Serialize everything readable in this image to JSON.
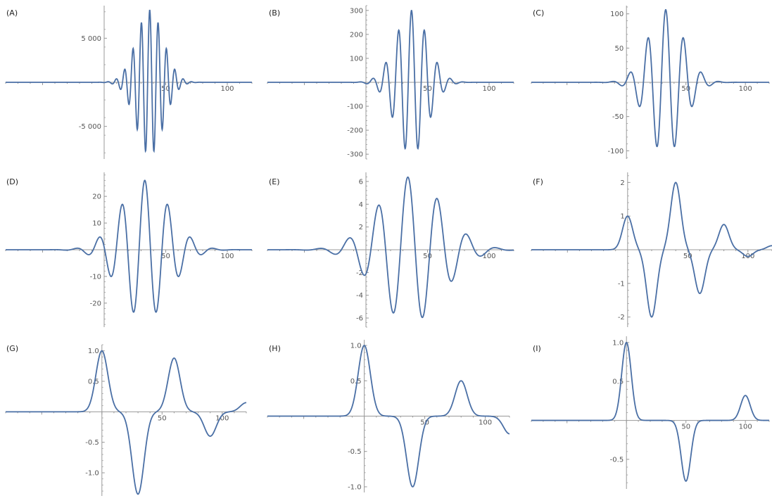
{
  "figure": {
    "curve_color": "#4a6fa5",
    "axis_color": "#999999",
    "text_color": "#555555"
  },
  "chart_data": [
    {
      "panel": "(A)",
      "type": "line",
      "xlim": [
        -80,
        120
      ],
      "ylim": [
        -8700,
        8700
      ],
      "xticks": [
        50,
        100
      ],
      "xtick_labels": [
        "50",
        "100"
      ],
      "yticks": [
        5000,
        -5000
      ],
      "ytick_labels": [
        "5 000",
        "-5 000"
      ],
      "model": {
        "baseline": 0,
        "components": [
          {
            "type": "wave",
            "amp": 8200,
            "center": 37,
            "sigma": 11,
            "period": 6.8,
            "phase": 0
          }
        ]
      }
    },
    {
      "panel": "(B)",
      "type": "line",
      "xlim": [
        -80,
        120
      ],
      "ylim": [
        -320,
        320
      ],
      "xticks": [
        50,
        100
      ],
      "xtick_labels": [
        "50",
        "100"
      ],
      "yticks": [
        300,
        200,
        100,
        -100,
        -200,
        -300
      ],
      "ytick_labels": [
        "300",
        "200",
        "100",
        "-100",
        "-200",
        "-300"
      ],
      "model": {
        "baseline": 0,
        "components": [
          {
            "type": "wave",
            "amp": 300,
            "center": 37,
            "sigma": 13,
            "period": 10.5,
            "phase": 0
          }
        ]
      }
    },
    {
      "panel": "(C)",
      "type": "line",
      "xlim": [
        -80,
        120
      ],
      "ylim": [
        -112,
        112
      ],
      "xticks": [
        50,
        100
      ],
      "xtick_labels": [
        "50",
        "100"
      ],
      "yticks": [
        100,
        50,
        -50,
        -100
      ],
      "ytick_labels": [
        "100",
        "50",
        "-50",
        "-100"
      ],
      "model": {
        "baseline": 0,
        "components": [
          {
            "type": "wave",
            "amp": 106,
            "center": 33,
            "sigma": 15,
            "period": 15,
            "phase": 0
          }
        ]
      }
    },
    {
      "panel": "(D)",
      "type": "line",
      "xlim": [
        -80,
        120
      ],
      "ylim": [
        -29,
        29
      ],
      "xticks": [
        50,
        100
      ],
      "xtick_labels": [
        "50",
        "100"
      ],
      "yticks": [
        20,
        10,
        -10,
        -20
      ],
      "ytick_labels": [
        "20",
        "10",
        "-10",
        "-20"
      ],
      "model": {
        "baseline": 0,
        "components": [
          {
            "type": "wave",
            "amp": 26,
            "center": 33,
            "sigma": 20,
            "period": 18.6,
            "phase": 0
          }
        ]
      }
    },
    {
      "panel": "(E)",
      "type": "line",
      "xlim": [
        -80,
        120
      ],
      "ylim": [
        -6.8,
        6.8
      ],
      "xticks": [
        50,
        100
      ],
      "xtick_labels": [
        "50",
        "100"
      ],
      "yticks": [
        6,
        4,
        2,
        -2,
        -4,
        -6
      ],
      "ytick_labels": [
        "6",
        "4",
        "2",
        "-2",
        "-4",
        "-6"
      ],
      "model": {
        "baseline": 0,
        "components": [
          {
            "type": "wave",
            "amp": 6.4,
            "center": 36,
            "sigma": 26,
            "period": 24,
            "phase": -2
          }
        ]
      }
    },
    {
      "panel": "(F)",
      "type": "line",
      "xlim": [
        -80,
        120
      ],
      "ylim": [
        -2.3,
        2.3
      ],
      "xticks": [
        50,
        100
      ],
      "xtick_labels": [
        "50",
        "100"
      ],
      "yticks": [
        2,
        1,
        -1,
        -2
      ],
      "ytick_labels": [
        "2",
        "1",
        "-1",
        "-2"
      ],
      "model": {
        "baseline": 0,
        "components": [
          {
            "type": "gauss",
            "amp": 1.0,
            "center": 0,
            "sigma": 4.2
          },
          {
            "type": "gauss",
            "amp": -2.0,
            "center": 20,
            "sigma": 4.2
          },
          {
            "type": "gauss",
            "amp": 2.0,
            "center": 40,
            "sigma": 4.2
          },
          {
            "type": "gauss",
            "amp": -1.3,
            "center": 60,
            "sigma": 4.2
          },
          {
            "type": "gauss",
            "amp": 0.75,
            "center": 80,
            "sigma": 4.2
          },
          {
            "type": "gauss",
            "amp": -0.2,
            "center": 100,
            "sigma": 4.2
          },
          {
            "type": "gauss",
            "amp": 0.12,
            "center": 120,
            "sigma": 4.2
          }
        ]
      }
    },
    {
      "panel": "(G)",
      "type": "line",
      "xlim": [
        -80,
        120
      ],
      "ylim": [
        -1.38,
        1.1
      ],
      "xticks": [
        50,
        100
      ],
      "xtick_labels": [
        "50",
        "100"
      ],
      "yticks": [
        1.0,
        0.5,
        -0.5,
        -1.0
      ],
      "ytick_labels": [
        "1.0",
        "0.5",
        "-0.5",
        "-1.0"
      ],
      "model": {
        "baseline": 0,
        "components": [
          {
            "type": "gauss",
            "amp": 1.0,
            "center": 0,
            "sigma": 5
          },
          {
            "type": "gauss",
            "amp": -1.35,
            "center": 30,
            "sigma": 5
          },
          {
            "type": "gauss",
            "amp": 0.88,
            "center": 60,
            "sigma": 5
          },
          {
            "type": "gauss",
            "amp": -0.4,
            "center": 90,
            "sigma": 5
          },
          {
            "type": "gauss",
            "amp": 0.15,
            "center": 120,
            "sigma": 5
          }
        ]
      }
    },
    {
      "panel": "(H)",
      "type": "line",
      "xlim": [
        -80,
        120
      ],
      "ylim": [
        -1.08,
        1.08
      ],
      "xticks": [
        50,
        100
      ],
      "xtick_labels": [
        "50",
        "100"
      ],
      "yticks": [
        1.0,
        0.5,
        -0.5,
        -1.0
      ],
      "ytick_labels": [
        "1.0",
        "0.5",
        "-0.5",
        "-1.0"
      ],
      "model": {
        "baseline": 0,
        "components": [
          {
            "type": "gauss",
            "amp": 1.0,
            "center": 0,
            "sigma": 5
          },
          {
            "type": "gauss",
            "amp": -1.0,
            "center": 40,
            "sigma": 5
          },
          {
            "type": "gauss",
            "amp": 0.5,
            "center": 80,
            "sigma": 5
          },
          {
            "type": "gauss",
            "amp": -0.25,
            "center": 120,
            "sigma": 5
          }
        ]
      }
    },
    {
      "panel": "(I)",
      "type": "line",
      "xlim": [
        -80,
        120
      ],
      "ylim": [
        -0.88,
        1.08
      ],
      "xticks": [
        50,
        100
      ],
      "xtick_labels": [
        "50",
        "100"
      ],
      "yticks": [
        1.0,
        0.5,
        -0.5
      ],
      "ytick_labels": [
        "1.0",
        "0.5",
        "-0.5"
      ],
      "model": {
        "baseline": 0,
        "components": [
          {
            "type": "gauss",
            "amp": 1.0,
            "center": 0,
            "sigma": 4
          },
          {
            "type": "gauss",
            "amp": -0.78,
            "center": 50,
            "sigma": 4
          },
          {
            "type": "gauss",
            "amp": 0.32,
            "center": 100,
            "sigma": 4
          }
        ]
      }
    }
  ]
}
